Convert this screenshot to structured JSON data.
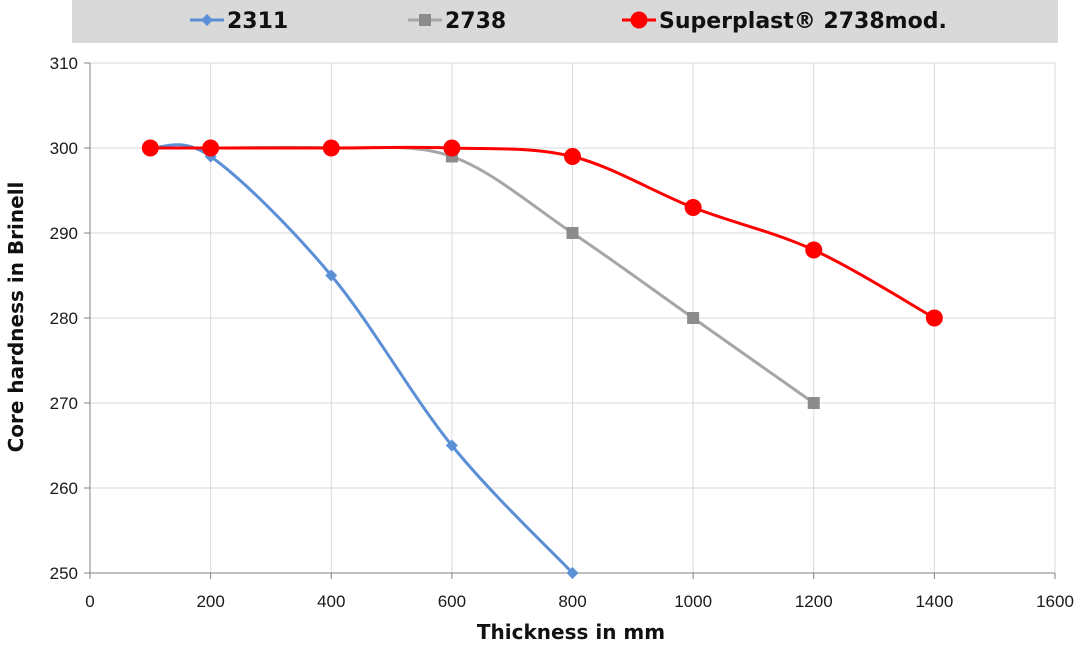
{
  "chart_data": {
    "type": "line",
    "title": "",
    "xlabel": "Thickness in mm",
    "ylabel": "Core hardness in Brinell",
    "xlim": [
      0,
      1600
    ],
    "ylim": [
      250,
      310
    ],
    "xticks": [
      0,
      200,
      400,
      600,
      800,
      1000,
      1200,
      1400,
      1600
    ],
    "yticks": [
      250,
      260,
      270,
      280,
      290,
      300,
      310
    ],
    "grid": true,
    "legend_position": "top",
    "smooth": true,
    "series": [
      {
        "name": "2311",
        "color": "#5b8fd6",
        "marker": "diamond",
        "x": [
          100,
          200,
          400,
          600,
          800
        ],
        "y": [
          300,
          299,
          285,
          265,
          250
        ]
      },
      {
        "name": "2738",
        "color": "#a6a6a6",
        "marker_color": "#8c8c8c",
        "marker": "square",
        "x": [
          100,
          200,
          400,
          600,
          800,
          1000,
          1200
        ],
        "y": [
          300,
          300,
          300,
          299,
          290,
          280,
          270
        ]
      },
      {
        "name": "Superplast® 2738mod.",
        "color": "#ff0000",
        "marker": "circle",
        "x": [
          100,
          200,
          400,
          600,
          800,
          1000,
          1200,
          1400
        ],
        "y": [
          300,
          300,
          300,
          300,
          299,
          293,
          288,
          280
        ]
      }
    ]
  }
}
